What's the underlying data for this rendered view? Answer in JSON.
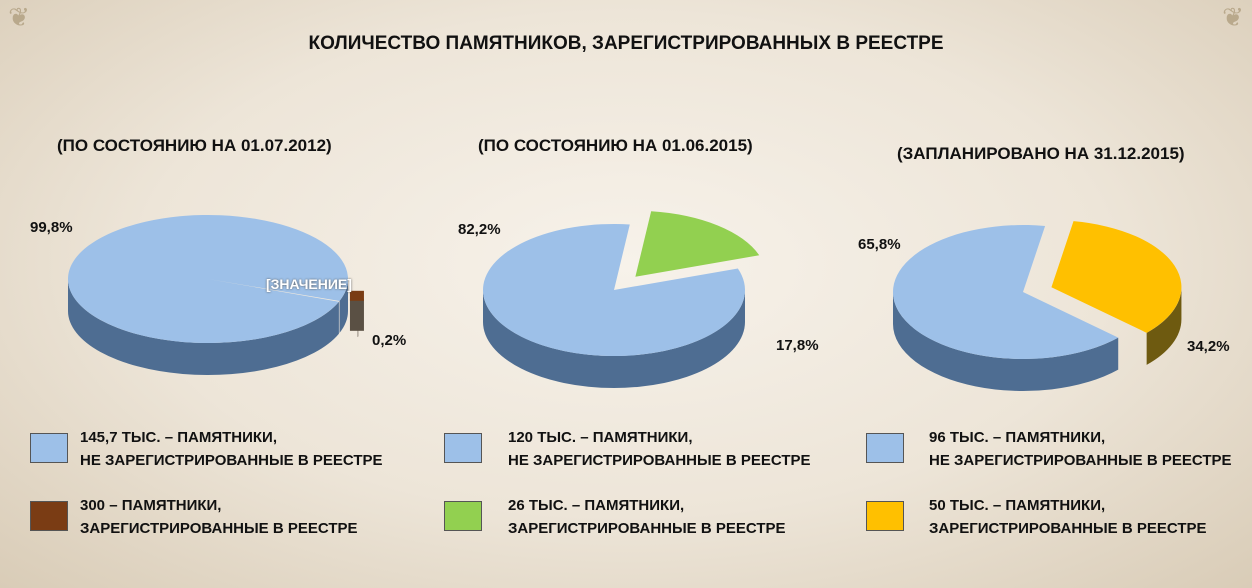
{
  "page_title": "КОЛИЧЕСТВО ПАМЯТНИКОВ, ЗАРЕГИСТРИРОВАННЫХ В РЕЕСТРЕ",
  "colors": {
    "unregistered": "#9dc0e8",
    "unregistered_side": "#4e6d92",
    "charts": [
      {
        "registered": "#7a3c14",
        "registered_side": "#5a5044"
      },
      {
        "registered": "#92d050",
        "registered_side": "#3a5a1e"
      },
      {
        "registered": "#ffc000",
        "registered_side": "#6e5a10"
      }
    ],
    "background": "#efe8dc"
  },
  "chart_data": [
    {
      "type": "pie",
      "title": "(ПО СОСТОЯНИЮ НА 01.07.2012)",
      "slice_labels": [
        "99,8%",
        "0,2%"
      ],
      "values": [
        99.8,
        0.2
      ],
      "placeholder_label": "[ЗНАЧЕНИЕ]",
      "legend": [
        {
          "line1": "145,7 ТЫС. – ПАМЯТНИКИ,",
          "line2": "НЕ ЗАРЕГИСТРИРОВАННЫЕ В РЕЕСТРЕ"
        },
        {
          "line1": "300 – ПАМЯТНИКИ,",
          "line2": "ЗАРЕГИСТРИРОВАННЫЕ В РЕЕСТРЕ"
        }
      ]
    },
    {
      "type": "pie",
      "title": "(ПО СОСТОЯНИЮ НА 01.06.2015)",
      "slice_labels": [
        "82,2%",
        "17,8%"
      ],
      "values": [
        82.2,
        17.8
      ],
      "legend": [
        {
          "line1": "120 ТЫС. – ПАМЯТНИКИ,",
          "line2": "НЕ ЗАРЕГИСТРИРОВАННЫЕ В РЕЕСТРЕ"
        },
        {
          "line1": "26 ТЫС. – ПАМЯТНИКИ,",
          "line2": "ЗАРЕГИСТРИРОВАННЫЕ В РЕЕСТРЕ"
        }
      ]
    },
    {
      "type": "pie",
      "title": "(ЗАПЛАНИРОВАНО НА 31.12.2015)",
      "slice_labels": [
        "65,8%",
        "34,2%"
      ],
      "values": [
        65.8,
        34.2
      ],
      "legend": [
        {
          "line1": "96 ТЫС. – ПАМЯТНИКИ,",
          "line2": "НЕ ЗАРЕГИСТРИРОВАННЫЕ В РЕЕСТРЕ"
        },
        {
          "line1": "50 ТЫС. – ПАМЯТНИКИ,",
          "line2": "ЗАРЕГИСТРИРОВАННЫЕ В РЕЕСТРЕ"
        }
      ]
    }
  ]
}
